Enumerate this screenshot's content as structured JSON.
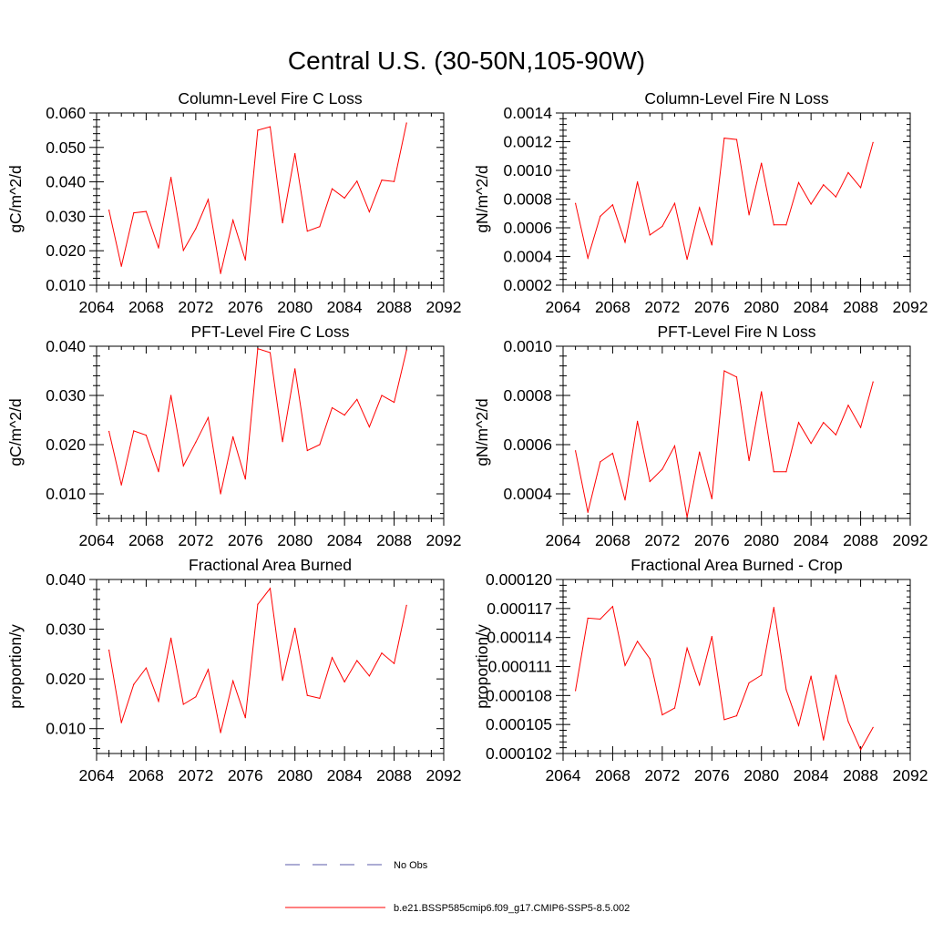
{
  "title": "Central U.S. (30-50N,105-90W)",
  "panels": [
    {
      "title": "Column-Level Fire C Loss",
      "ylabel": "gC/m^2/d",
      "xlim": [
        2064,
        2092
      ],
      "xticks": [
        "2064",
        "2068",
        "2072",
        "2076",
        "2080",
        "2084",
        "2088",
        "2092"
      ],
      "ylim": [
        0.01,
        0.06
      ],
      "yticks": [
        "0.010",
        "0.020",
        "0.030",
        "0.040",
        "0.050",
        "0.060"
      ]
    },
    {
      "title": "Column-Level Fire N Loss",
      "ylabel": "gN/m^2/d",
      "xlim": [
        2064,
        2092
      ],
      "xticks": [
        "2064",
        "2068",
        "2072",
        "2076",
        "2080",
        "2084",
        "2088",
        "2092"
      ],
      "ylim": [
        0.0002,
        0.0014
      ],
      "yticks": [
        "0.0002",
        "0.0004",
        "0.0006",
        "0.0008",
        "0.0010",
        "0.0012",
        "0.0014"
      ]
    },
    {
      "title": "PFT-Level Fire C Loss",
      "ylabel": "gC/m^2/d",
      "xlim": [
        2064,
        2092
      ],
      "xticks": [
        "2064",
        "2068",
        "2072",
        "2076",
        "2080",
        "2084",
        "2088",
        "2092"
      ],
      "ylim": [
        0.005,
        0.04
      ],
      "yticks": [
        "0.010",
        "0.020",
        "0.030",
        "0.040"
      ]
    },
    {
      "title": "PFT-Level Fire N Loss",
      "ylabel": "gN/m^2/d",
      "xlim": [
        2064,
        2092
      ],
      "xticks": [
        "2064",
        "2068",
        "2072",
        "2076",
        "2080",
        "2084",
        "2088",
        "2092"
      ],
      "ylim": [
        0.0003,
        0.001
      ],
      "yticks": [
        "0.0004",
        "0.0006",
        "0.0008",
        "0.0010"
      ]
    },
    {
      "title": "Fractional Area Burned",
      "ylabel": "proportion/y",
      "xlim": [
        2064,
        2092
      ],
      "xticks": [
        "2064",
        "2068",
        "2072",
        "2076",
        "2080",
        "2084",
        "2088",
        "2092"
      ],
      "ylim": [
        0.005,
        0.04
      ],
      "yticks": [
        "0.010",
        "0.020",
        "0.030",
        "0.040"
      ]
    },
    {
      "title": "Fractional Area Burned - Crop",
      "ylabel": "proportion/y",
      "xlim": [
        2064,
        2092
      ],
      "xticks": [
        "2064",
        "2068",
        "2072",
        "2076",
        "2080",
        "2084",
        "2088",
        "2092"
      ],
      "ylim": [
        0.000102,
        0.00012
      ],
      "yticks": [
        "0.000102",
        "0.000105",
        "0.000108",
        "0.000111",
        "0.000114",
        "0.000117",
        "0.000120"
      ]
    }
  ],
  "legend": {
    "items": [
      {
        "label": "No Obs",
        "color": "#5a5aa8",
        "style": "dashed"
      },
      {
        "label": "b.e21.BSSP585cmip6.f09_g17.CMIP6-SSP5-8.5.002",
        "color": "#ff0000",
        "style": "solid"
      }
    ]
  },
  "chart_data": [
    {
      "type": "line",
      "title": "Column-Level Fire C Loss",
      "ylabel": "gC/m^2/d",
      "xlim": [
        2064,
        2092
      ],
      "ylim": [
        0.01,
        0.06
      ],
      "grid": false,
      "x": [
        2065,
        2066,
        2067,
        2068,
        2069,
        2070,
        2071,
        2072,
        2073,
        2074,
        2075,
        2076,
        2077,
        2078,
        2079,
        2080,
        2081,
        2082,
        2083,
        2084,
        2085,
        2086,
        2087,
        2088,
        2089
      ],
      "series": [
        {
          "name": "b.e21.BSSP585cmip6.f09_g17.CMIP6-SSP5-8.5.002",
          "color": "#ff0000",
          "values": [
            0.0318,
            0.0155,
            0.031,
            0.0314,
            0.0208,
            0.0413,
            0.0201,
            0.0264,
            0.0349,
            0.0134,
            0.0289,
            0.0173,
            0.055,
            0.056,
            0.0281,
            0.0482,
            0.0257,
            0.027,
            0.038,
            0.0353,
            0.0402,
            0.0313,
            0.0405,
            0.0401,
            0.0571
          ]
        }
      ]
    },
    {
      "type": "line",
      "title": "Column-Level Fire N Loss",
      "ylabel": "gN/m^2/d",
      "xlim": [
        2064,
        2092
      ],
      "ylim": [
        0.0002,
        0.0014
      ],
      "grid": false,
      "x": [
        2065,
        2066,
        2067,
        2068,
        2069,
        2070,
        2071,
        2072,
        2073,
        2074,
        2075,
        2076,
        2077,
        2078,
        2079,
        2080,
        2081,
        2082,
        2083,
        2084,
        2085,
        2086,
        2087,
        2088,
        2089
      ],
      "series": [
        {
          "name": "b.e21.BSSP585cmip6.f09_g17.CMIP6-SSP5-8.5.002",
          "color": "#ff0000",
          "values": [
            0.00077,
            0.00039,
            0.00068,
            0.00076,
            0.0005,
            0.00092,
            0.00055,
            0.00061,
            0.00077,
            0.00038,
            0.00074,
            0.00048,
            0.001225,
            0.001215,
            0.00069,
            0.00105,
            0.00062,
            0.00062,
            0.000915,
            0.000765,
            0.0009,
            0.000815,
            0.000985,
            0.00088,
            0.001195
          ]
        }
      ]
    },
    {
      "type": "line",
      "title": "PFT-Level Fire C Loss",
      "ylabel": "gC/m^2/d",
      "xlim": [
        2064,
        2092
      ],
      "ylim": [
        0.005,
        0.04
      ],
      "grid": false,
      "x": [
        2065,
        2066,
        2067,
        2068,
        2069,
        2070,
        2071,
        2072,
        2073,
        2074,
        2075,
        2076,
        2077,
        2078,
        2079,
        2080,
        2081,
        2082,
        2083,
        2084,
        2085,
        2086,
        2087,
        2088,
        2089
      ],
      "series": [
        {
          "name": "b.e21.BSSP585cmip6.f09_g17.CMIP6-SSP5-8.5.002",
          "color": "#ff0000",
          "values": [
            0.0227,
            0.0118,
            0.0228,
            0.0219,
            0.0145,
            0.03,
            0.0157,
            0.0205,
            0.0255,
            0.01,
            0.0216,
            0.013,
            0.0395,
            0.0387,
            0.0206,
            0.0354,
            0.0188,
            0.02,
            0.0275,
            0.026,
            0.0292,
            0.0236,
            0.03,
            0.0286,
            0.0392
          ]
        }
      ]
    },
    {
      "type": "line",
      "title": "PFT-Level Fire N Loss",
      "ylabel": "gN/m^2/d",
      "xlim": [
        2064,
        2092
      ],
      "ylim": [
        0.0003,
        0.001
      ],
      "grid": false,
      "x": [
        2065,
        2066,
        2067,
        2068,
        2069,
        2070,
        2071,
        2072,
        2073,
        2074,
        2075,
        2076,
        2077,
        2078,
        2079,
        2080,
        2081,
        2082,
        2083,
        2084,
        2085,
        2086,
        2087,
        2088,
        2089
      ],
      "series": [
        {
          "name": "b.e21.BSSP585cmip6.f09_g17.CMIP6-SSP5-8.5.002",
          "color": "#ff0000",
          "values": [
            0.000575,
            0.000325,
            0.00053,
            0.000565,
            0.000375,
            0.000695,
            0.00045,
            0.0005,
            0.000595,
            0.000305,
            0.00057,
            0.00038,
            0.0009,
            0.000875,
            0.000535,
            0.000815,
            0.00049,
            0.00049,
            0.00069,
            0.000605,
            0.00069,
            0.00064,
            0.00076,
            0.00067,
            0.000855
          ]
        }
      ]
    },
    {
      "type": "line",
      "title": "Fractional Area Burned",
      "ylabel": "proportion/y",
      "xlim": [
        2064,
        2092
      ],
      "ylim": [
        0.005,
        0.04
      ],
      "grid": false,
      "x": [
        2065,
        2066,
        2067,
        2068,
        2069,
        2070,
        2071,
        2072,
        2073,
        2074,
        2075,
        2076,
        2077,
        2078,
        2079,
        2080,
        2081,
        2082,
        2083,
        2084,
        2085,
        2086,
        2087,
        2088,
        2089
      ],
      "series": [
        {
          "name": "b.e21.BSSP585cmip6.f09_g17.CMIP6-SSP5-8.5.002",
          "color": "#ff0000",
          "values": [
            0.0258,
            0.0112,
            0.0189,
            0.0222,
            0.0155,
            0.0282,
            0.0149,
            0.0164,
            0.0219,
            0.0092,
            0.0196,
            0.0122,
            0.035,
            0.0382,
            0.0197,
            0.0302,
            0.0167,
            0.0161,
            0.0243,
            0.0194,
            0.0237,
            0.0206,
            0.0252,
            0.0231,
            0.0348
          ]
        }
      ]
    },
    {
      "type": "line",
      "title": "Fractional Area Burned - Crop",
      "ylabel": "proportion/y",
      "xlim": [
        2064,
        2092
      ],
      "ylim": [
        0.000102,
        0.00012
      ],
      "grid": false,
      "x": [
        2065,
        2066,
        2067,
        2068,
        2069,
        2070,
        2071,
        2072,
        2073,
        2074,
        2075,
        2076,
        2077,
        2078,
        2079,
        2080,
        2081,
        2082,
        2083,
        2084,
        2085,
        2086,
        2087,
        2088,
        2089
      ],
      "series": [
        {
          "name": "b.e21.BSSP585cmip6.f09_g17.CMIP6-SSP5-8.5.002",
          "color": "#ff0000",
          "values": [
            0.0001085,
            0.000116,
            0.0001159,
            0.0001172,
            0.0001111,
            0.0001136,
            0.0001118,
            0.000106,
            0.0001067,
            0.0001129,
            0.0001091,
            0.0001141,
            0.0001055,
            0.0001059,
            0.0001093,
            0.0001101,
            0.0001171,
            0.0001086,
            0.0001049,
            0.00011,
            0.0001034,
            0.0001101,
            0.0001053,
            0.0001024,
            0.0001047
          ]
        }
      ]
    }
  ]
}
